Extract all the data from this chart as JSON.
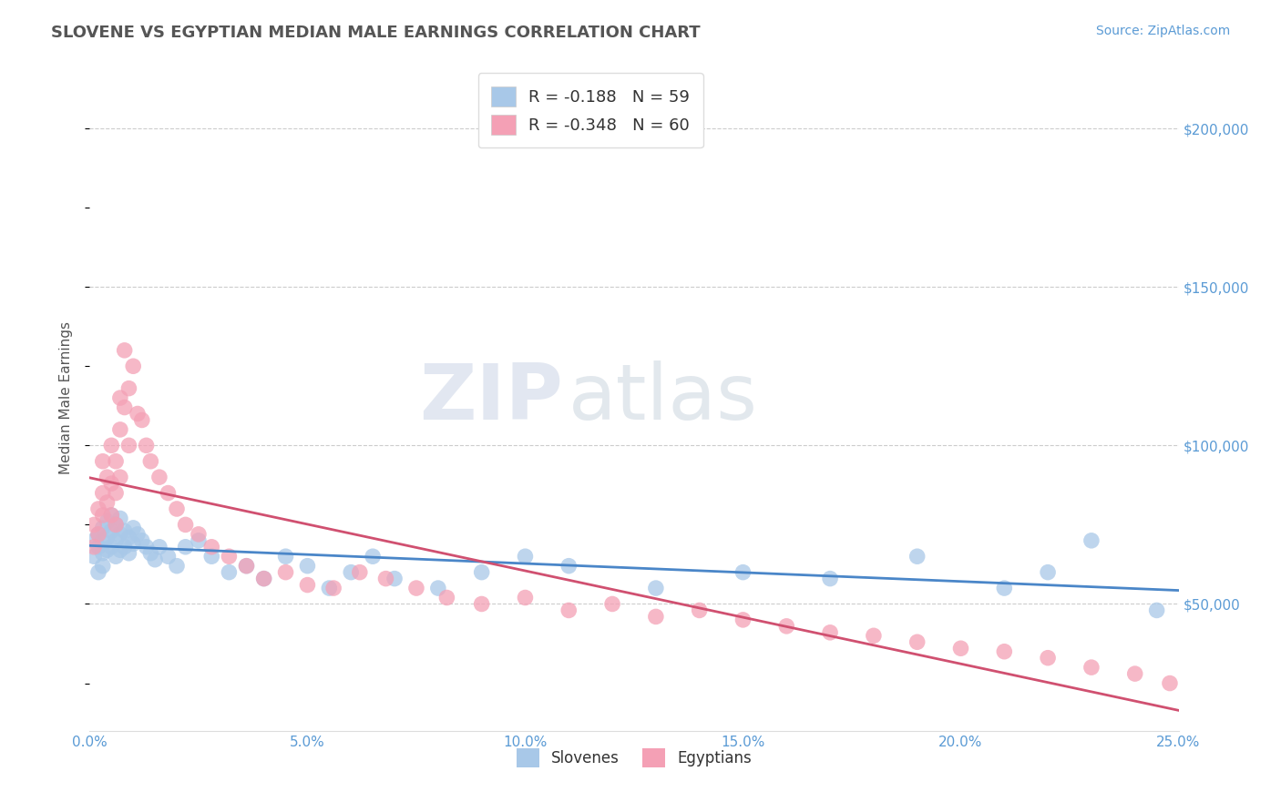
{
  "title": "SLOVENE VS EGYPTIAN MEDIAN MALE EARNINGS CORRELATION CHART",
  "source_text": "Source: ZipAtlas.com",
  "ylabel": "Median Male Earnings",
  "x_min": 0.0,
  "x_max": 0.25,
  "y_min": 10000,
  "y_max": 220000,
  "y_ticks": [
    50000,
    100000,
    150000,
    200000
  ],
  "y_tick_labels": [
    "$50,000",
    "$100,000",
    "$150,000",
    "$200,000"
  ],
  "x_ticks": [
    0.0,
    0.05,
    0.1,
    0.15,
    0.2,
    0.25
  ],
  "x_tick_labels": [
    "0.0%",
    "5.0%",
    "10.0%",
    "15.0%",
    "20.0%",
    "25.0%"
  ],
  "slovene_color": "#a8c8e8",
  "egyptian_color": "#f4a0b5",
  "slovene_line_color": "#4a86c8",
  "egyptian_line_color": "#d05070",
  "slovene_R": -0.188,
  "slovene_N": 59,
  "egyptian_R": -0.348,
  "egyptian_N": 60,
  "legend_label_slovene": "Slovenes",
  "legend_label_egyptian": "Egyptians",
  "watermark_zip": "ZIP",
  "watermark_atlas": "atlas",
  "background_color": "#ffffff",
  "grid_color": "#cccccc",
  "title_color": "#555555",
  "tick_label_color": "#5b9bd5",
  "slovene_x": [
    0.001,
    0.001,
    0.002,
    0.002,
    0.002,
    0.003,
    0.003,
    0.003,
    0.003,
    0.004,
    0.004,
    0.004,
    0.005,
    0.005,
    0.005,
    0.006,
    0.006,
    0.006,
    0.007,
    0.007,
    0.007,
    0.008,
    0.008,
    0.009,
    0.009,
    0.01,
    0.01,
    0.011,
    0.012,
    0.013,
    0.014,
    0.015,
    0.016,
    0.018,
    0.02,
    0.022,
    0.025,
    0.028,
    0.032,
    0.036,
    0.04,
    0.045,
    0.05,
    0.055,
    0.06,
    0.065,
    0.07,
    0.08,
    0.09,
    0.1,
    0.11,
    0.13,
    0.15,
    0.17,
    0.19,
    0.21,
    0.22,
    0.23,
    0.245
  ],
  "slovene_y": [
    70000,
    65000,
    72000,
    68000,
    60000,
    74000,
    70000,
    66000,
    62000,
    76000,
    71000,
    67000,
    78000,
    73000,
    68000,
    75000,
    70000,
    65000,
    77000,
    72000,
    67000,
    73000,
    68000,
    71000,
    66000,
    74000,
    69000,
    72000,
    70000,
    68000,
    66000,
    64000,
    68000,
    65000,
    62000,
    68000,
    70000,
    65000,
    60000,
    62000,
    58000,
    65000,
    62000,
    55000,
    60000,
    65000,
    58000,
    55000,
    60000,
    65000,
    62000,
    55000,
    60000,
    58000,
    65000,
    55000,
    60000,
    70000,
    48000
  ],
  "egyptian_x": [
    0.001,
    0.001,
    0.002,
    0.002,
    0.003,
    0.003,
    0.003,
    0.004,
    0.004,
    0.005,
    0.005,
    0.005,
    0.006,
    0.006,
    0.006,
    0.007,
    0.007,
    0.007,
    0.008,
    0.008,
    0.009,
    0.009,
    0.01,
    0.011,
    0.012,
    0.013,
    0.014,
    0.016,
    0.018,
    0.02,
    0.022,
    0.025,
    0.028,
    0.032,
    0.036,
    0.04,
    0.045,
    0.05,
    0.056,
    0.062,
    0.068,
    0.075,
    0.082,
    0.09,
    0.1,
    0.11,
    0.12,
    0.13,
    0.14,
    0.15,
    0.16,
    0.17,
    0.18,
    0.19,
    0.2,
    0.21,
    0.22,
    0.23,
    0.24,
    0.248
  ],
  "egyptian_y": [
    75000,
    68000,
    80000,
    72000,
    85000,
    95000,
    78000,
    90000,
    82000,
    100000,
    88000,
    78000,
    95000,
    85000,
    75000,
    115000,
    105000,
    90000,
    130000,
    112000,
    118000,
    100000,
    125000,
    110000,
    108000,
    100000,
    95000,
    90000,
    85000,
    80000,
    75000,
    72000,
    68000,
    65000,
    62000,
    58000,
    60000,
    56000,
    55000,
    60000,
    58000,
    55000,
    52000,
    50000,
    52000,
    48000,
    50000,
    46000,
    48000,
    45000,
    43000,
    41000,
    40000,
    38000,
    36000,
    35000,
    33000,
    30000,
    28000,
    25000
  ]
}
